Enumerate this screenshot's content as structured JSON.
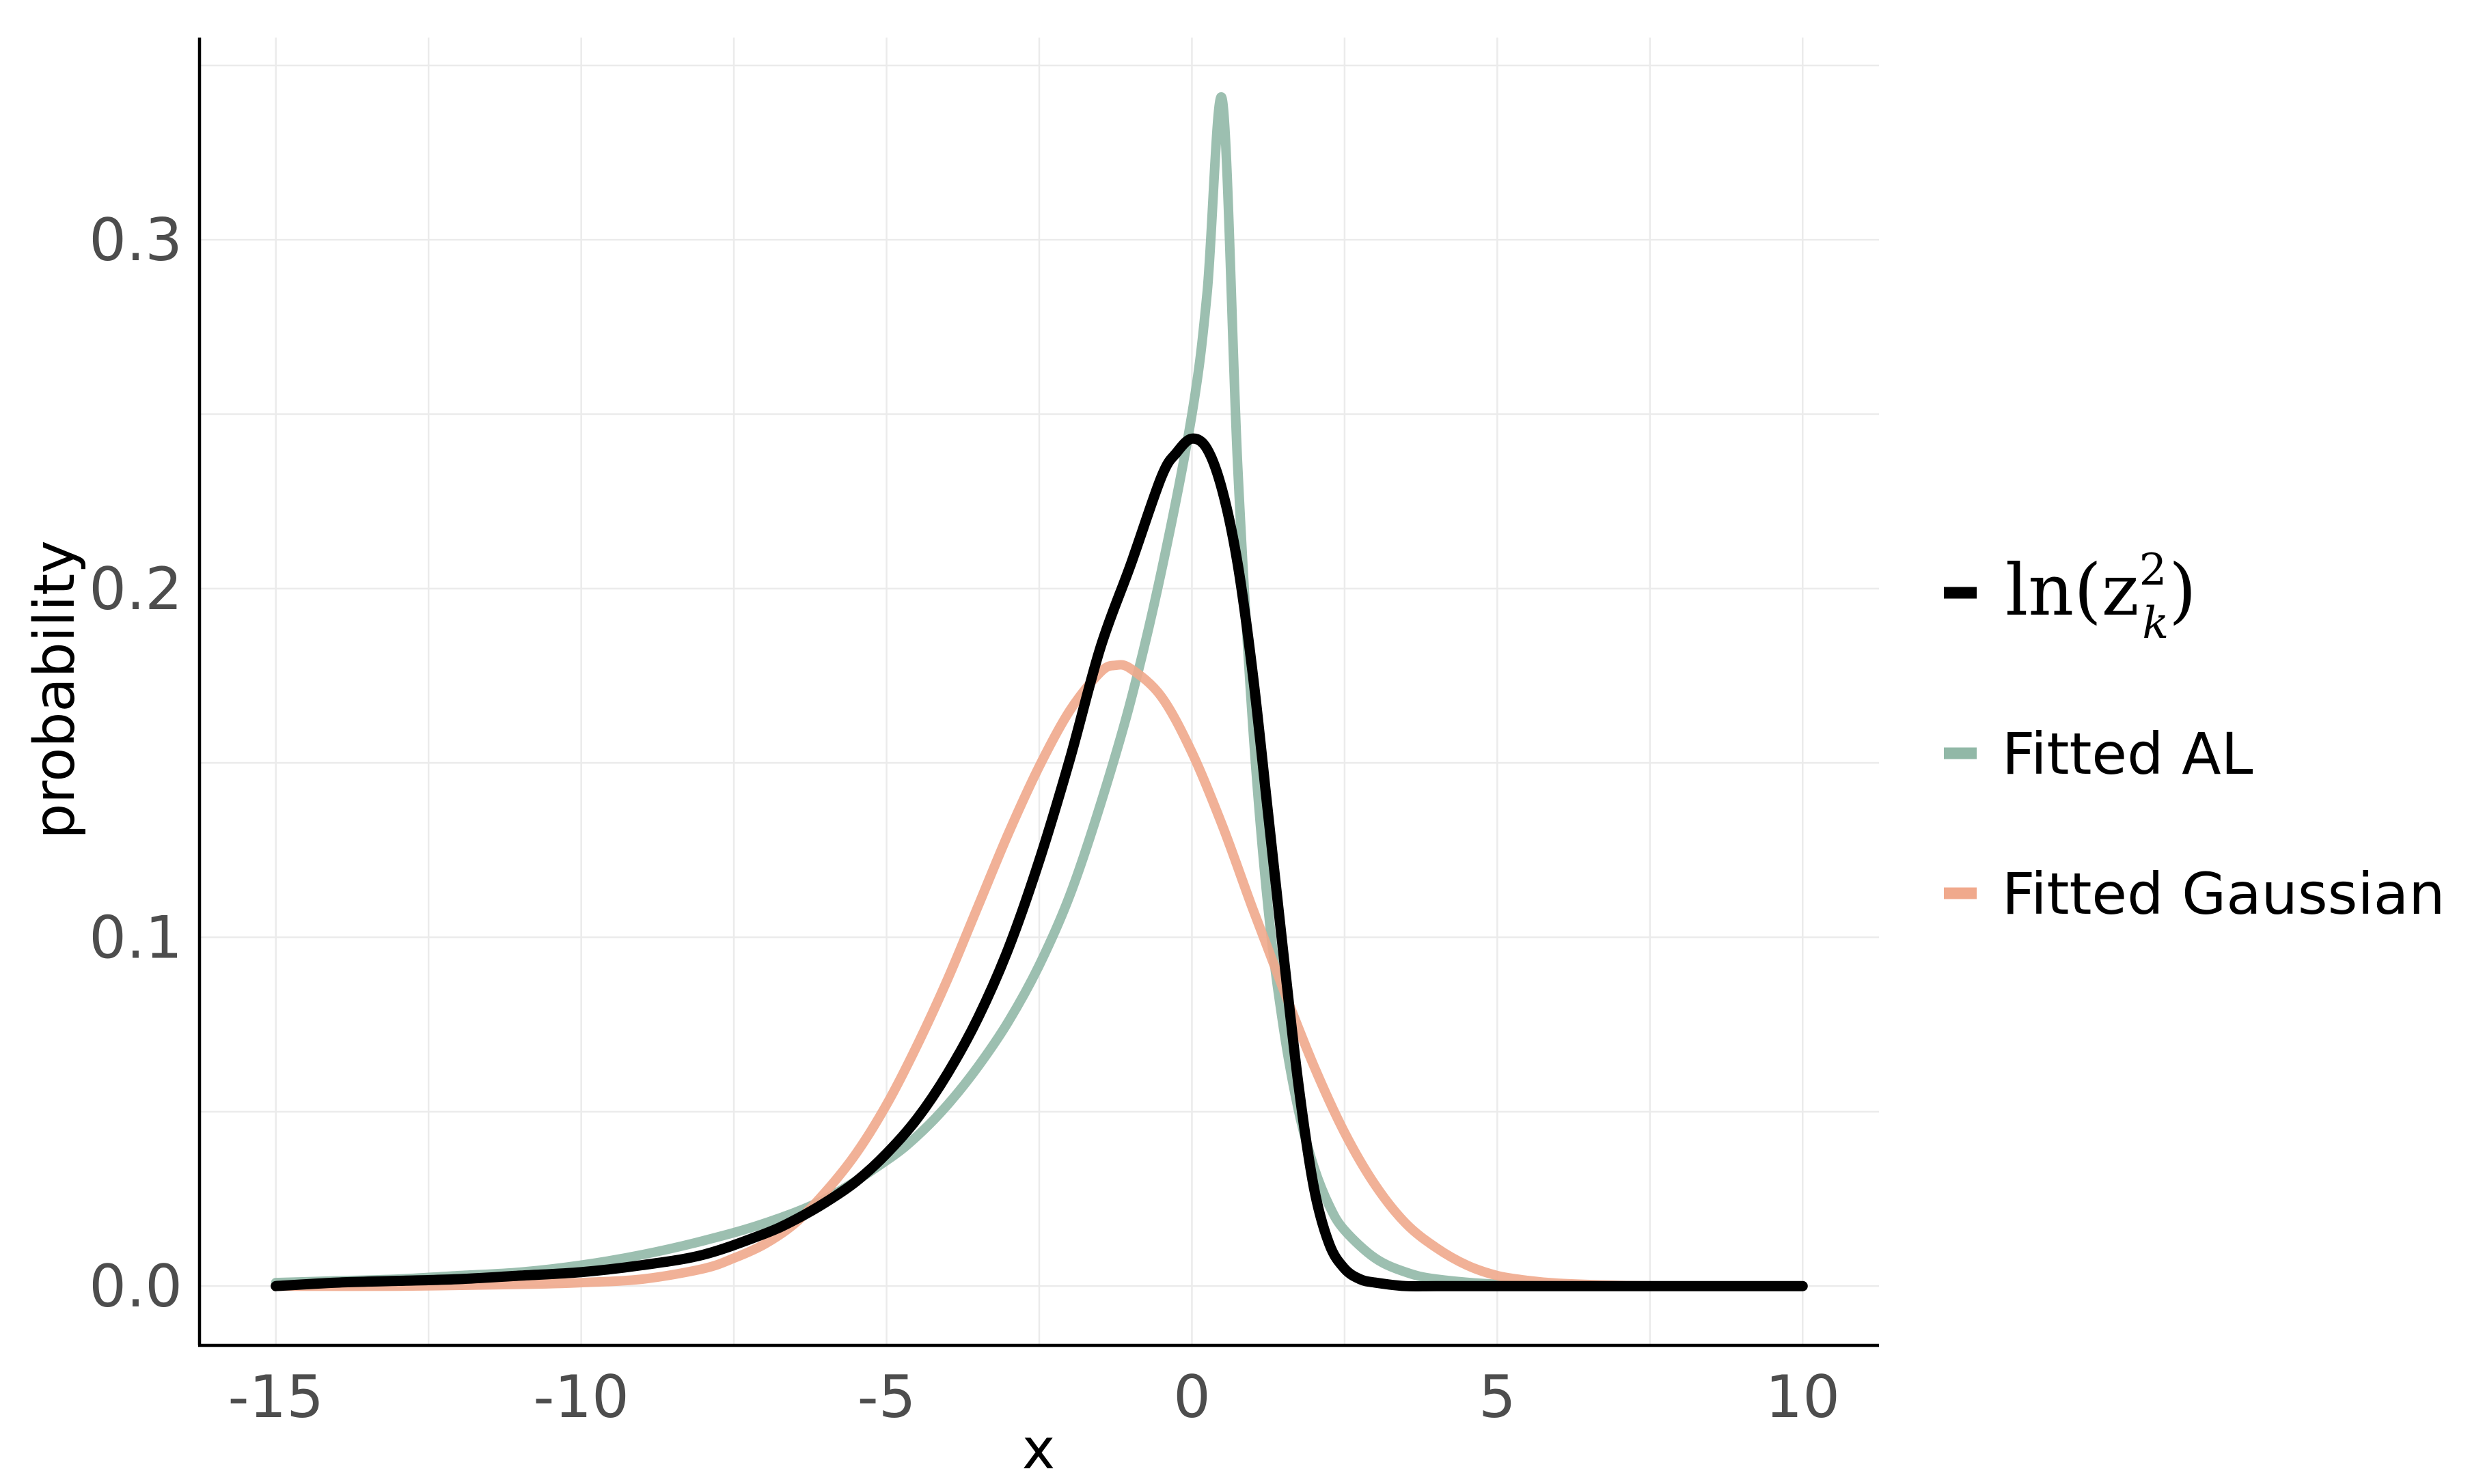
{
  "chart_data": {
    "type": "line",
    "title": "",
    "xlabel": "x",
    "ylabel": "probability",
    "xlim": [
      -16.25,
      11.25
    ],
    "ylim": [
      -0.017,
      0.358
    ],
    "x_ticks": [
      -15,
      -10,
      -5,
      0,
      5,
      10
    ],
    "x_tick_labels": [
      "-15",
      "-10",
      "-5",
      "0",
      "5",
      "10"
    ],
    "y_ticks": [
      0.0,
      0.1,
      0.2,
      0.3
    ],
    "y_tick_labels": [
      "0.0",
      "0.1",
      "0.2",
      "0.3"
    ],
    "grid": true,
    "legend_position": "right",
    "series": [
      {
        "name": "ln(z_k^2)",
        "color": "#000000",
        "x": [
          -15,
          -14,
          -13,
          -12,
          -11,
          -10,
          -9,
          -8,
          -7,
          -6.5,
          -6,
          -5.5,
          -5,
          -4.5,
          -4,
          -3.5,
          -3,
          -2.5,
          -2,
          -1.5,
          -1,
          -0.5,
          -0.25,
          0,
          0.25,
          0.5,
          0.75,
          1,
          1.25,
          1.5,
          1.75,
          2,
          2.25,
          2.5,
          2.75,
          3,
          3.5,
          4,
          5,
          6,
          8,
          10
        ],
        "y": [
          0.0,
          0.001,
          0.0015,
          0.002,
          0.003,
          0.004,
          0.006,
          0.009,
          0.015,
          0.019,
          0.024,
          0.03,
          0.038,
          0.048,
          0.061,
          0.077,
          0.097,
          0.122,
          0.151,
          0.183,
          0.207,
          0.232,
          0.239,
          0.243,
          0.24,
          0.228,
          0.207,
          0.175,
          0.135,
          0.095,
          0.057,
          0.028,
          0.012,
          0.005,
          0.002,
          0.001,
          0.0,
          0.0,
          0.0,
          0.0,
          0.0,
          0.0
        ]
      },
      {
        "name": "Fitted AL",
        "color": "#91b8a7",
        "x": [
          -15,
          -14,
          -13,
          -12,
          -11,
          -10,
          -9,
          -8,
          -7,
          -6,
          -5,
          -4.5,
          -4,
          -3.5,
          -3,
          -2.5,
          -2,
          -1.5,
          -1,
          -0.5,
          0,
          0.25,
          0.5,
          0.75,
          1,
          1.25,
          1.5,
          1.75,
          2,
          2.25,
          2.5,
          3,
          3.5,
          4,
          5,
          6,
          8,
          10
        ],
        "y": [
          0.001,
          0.0015,
          0.002,
          0.003,
          0.004,
          0.006,
          0.009,
          0.013,
          0.018,
          0.025,
          0.036,
          0.043,
          0.052,
          0.063,
          0.076,
          0.092,
          0.112,
          0.138,
          0.168,
          0.205,
          0.25,
          0.285,
          0.34,
          0.235,
          0.16,
          0.108,
          0.074,
          0.05,
          0.034,
          0.023,
          0.016,
          0.008,
          0.004,
          0.002,
          0.0005,
          0.0002,
          0.0,
          0.0
        ]
      },
      {
        "name": "Fitted Gaussian",
        "color": "#f0a98c",
        "x": [
          -15,
          -13,
          -11,
          -10,
          -9,
          -8,
          -7.5,
          -7,
          -6.5,
          -6,
          -5.5,
          -5,
          -4.5,
          -4,
          -3.5,
          -3,
          -2.5,
          -2,
          -1.5,
          -1.25,
          -1,
          -0.5,
          0,
          0.5,
          1,
          1.5,
          2,
          2.5,
          3,
          3.5,
          4,
          4.5,
          5,
          5.5,
          6,
          7,
          8,
          10
        ],
        "y": [
          0.0,
          0.0,
          0.0005,
          0.001,
          0.002,
          0.005,
          0.008,
          0.012,
          0.018,
          0.027,
          0.038,
          0.052,
          0.069,
          0.088,
          0.109,
          0.13,
          0.149,
          0.165,
          0.176,
          0.178,
          0.177,
          0.169,
          0.153,
          0.132,
          0.108,
          0.085,
          0.063,
          0.044,
          0.029,
          0.018,
          0.011,
          0.006,
          0.003,
          0.0016,
          0.0008,
          0.0002,
          0.0,
          0.0
        ]
      }
    ]
  },
  "legend": {
    "math_base": "ln(z",
    "math_sup": "2",
    "math_sub": "k",
    "math_close": ")",
    "entries": [
      "Fitted AL",
      "Fitted Gaussian"
    ]
  }
}
